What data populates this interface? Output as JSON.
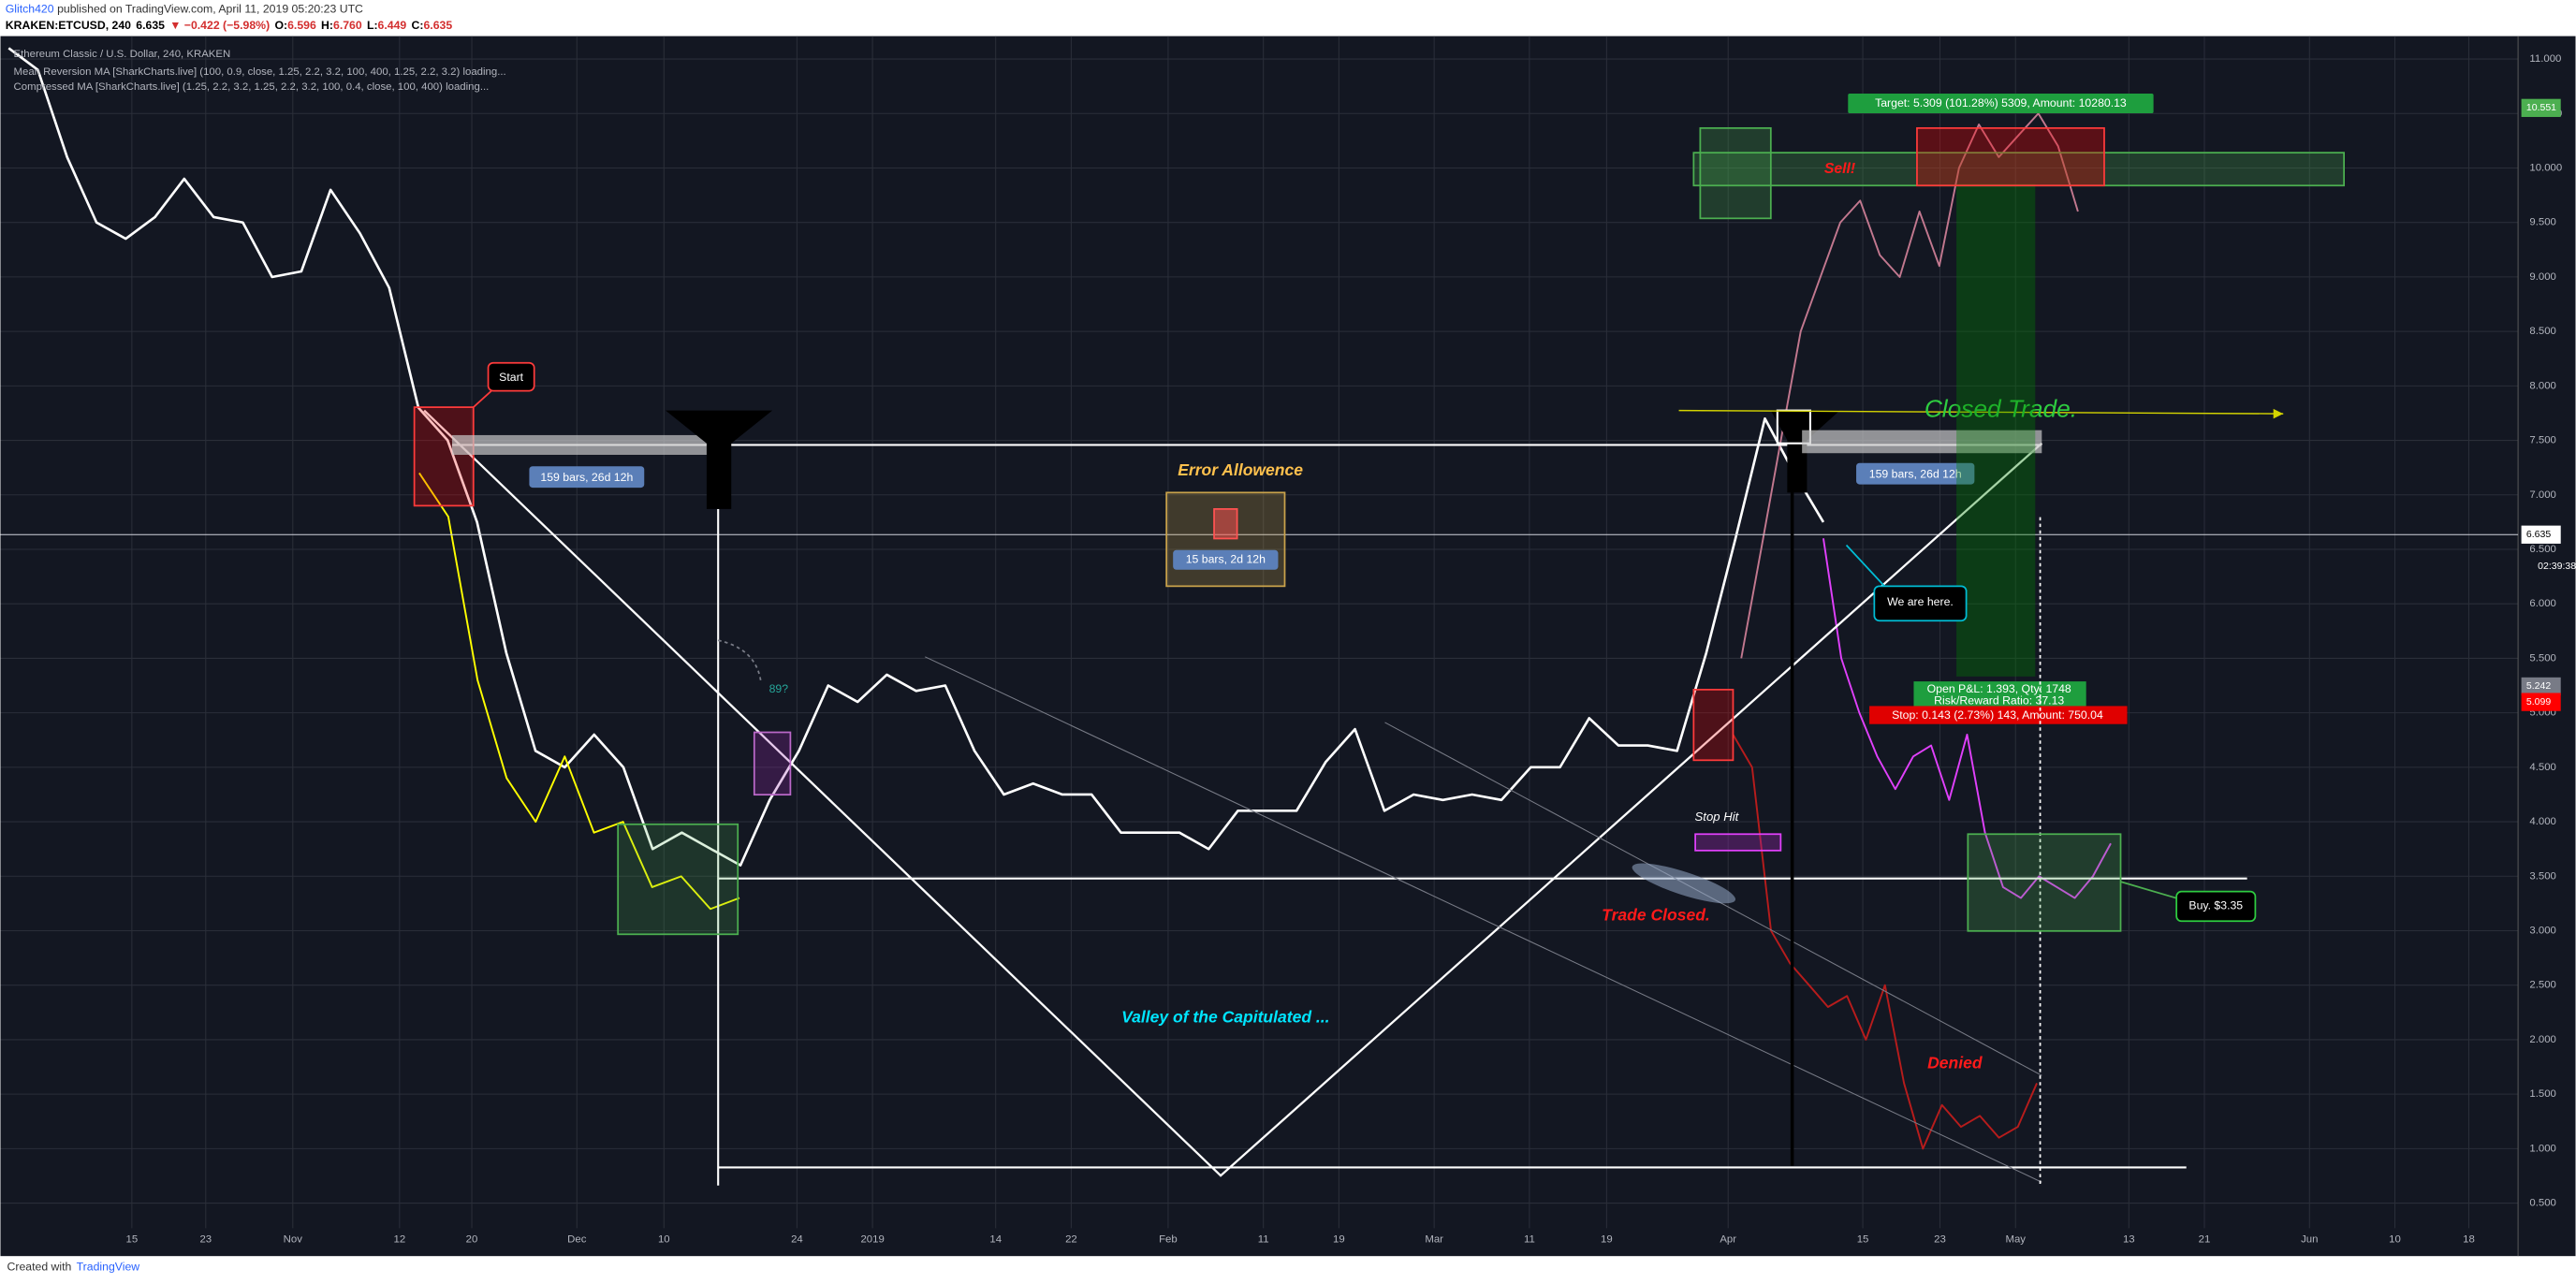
{
  "header": {
    "author": "Glitch420",
    "published": "published on TradingView.com, April 11, 2019 05:20:23 UTC",
    "symbol": "KRAKEN:ETCUSD, 240",
    "last": "6.635",
    "change": "▼ −0.422 (−5.98%)",
    "ohlc": [
      {
        "key": "O:",
        "value": "6.596"
      },
      {
        "key": "H:",
        "value": "6.760"
      },
      {
        "key": "L:",
        "value": "6.449"
      },
      {
        "key": "C:",
        "value": "6.635"
      }
    ]
  },
  "chart_data": {
    "type": "line",
    "title": "Ethereum Classic / U.S. Dollar, 240, KRAKEN",
    "indicators": [
      "Mean Reversion MA [SharkCharts.live] (100, 0.9, close, 1.25, 2.2, 3.2, 100, 400, 1.25, 2.2, 3.2) loading...",
      "Compressed MA [SharkCharts.live] (1.25, 2.2, 3.2, 1.25, 2.2, 3.2, 100, 0.4, close, 100, 400) loading..."
    ],
    "x_labels": [
      "15",
      "23",
      "Nov",
      "12",
      "20",
      "Dec",
      "10",
      "24",
      "2019",
      "14",
      "22",
      "Feb",
      "11",
      "19",
      "Mar",
      "11",
      "19",
      "Apr",
      "15",
      "23",
      "May",
      "13",
      "21",
      "Jun",
      "10",
      "18"
    ],
    "ylim": [
      0.27,
      11.21
    ],
    "yticks": [
      {
        "value": 0.5,
        "label": "0.500"
      },
      {
        "value": 1,
        "label": "1.000"
      },
      {
        "value": 1.5,
        "label": "1.500"
      },
      {
        "value": 2,
        "label": "2.000"
      },
      {
        "value": 2.5,
        "label": "2.500"
      },
      {
        "value": 3,
        "label": "3.000"
      },
      {
        "value": 3.5,
        "label": "3.500"
      },
      {
        "value": 4,
        "label": "4.000"
      },
      {
        "value": 4.5,
        "label": "4.500"
      },
      {
        "value": 5,
        "label": "5.000"
      },
      {
        "value": 5.5,
        "label": "5.500"
      },
      {
        "value": 6,
        "label": "6.000"
      },
      {
        "value": 6.5,
        "label": "6.500"
      },
      {
        "value": 7,
        "label": "7.000"
      },
      {
        "value": 7.5,
        "label": "7.500"
      },
      {
        "value": 8,
        "label": "8.000"
      },
      {
        "value": 8.5,
        "label": "8.500"
      },
      {
        "value": 9,
        "label": "9.000"
      },
      {
        "value": 9.5,
        "label": "9.500"
      },
      {
        "value": 10,
        "label": "10.000"
      },
      {
        "value": 10.5,
        "label": "10.500"
      },
      {
        "value": 11,
        "label": "11.000"
      }
    ],
    "grid": true,
    "series": [
      {
        "color": "#ffffff",
        "values": [
          11.1,
          10.9,
          10.1,
          9.5,
          9.35,
          9.55,
          9.9,
          9.55,
          9.5,
          9.0,
          9.05,
          9.8,
          9.4,
          8.9,
          7.8,
          7.5,
          6.75,
          5.55,
          4.65,
          4.5,
          4.8,
          4.5,
          3.75,
          3.9,
          3.75,
          3.6,
          4.2,
          4.65,
          5.25,
          5.1,
          5.35,
          5.2,
          5.25,
          4.65,
          4.25,
          4.35,
          4.25,
          4.25,
          3.9,
          3.9,
          3.9,
          3.75,
          4.1,
          4.1,
          4.1,
          4.55,
          4.85,
          4.1,
          4.25,
          4.2,
          4.25,
          4.2,
          4.5,
          4.5,
          4.95,
          4.7,
          4.7,
          4.65,
          5.55,
          6.6,
          7.7,
          7.2,
          6.75
        ]
      },
      {
        "color": "#ffff00",
        "values": [
          7.2,
          6.8,
          5.3,
          4.4,
          4.0,
          4.6,
          3.9,
          4.0,
          3.4,
          3.5,
          3.2,
          3.3
        ]
      },
      {
        "color": "#c2788f",
        "values": [
          5.5,
          6.5,
          7.5,
          8.5,
          9.0,
          9.5,
          9.7,
          9.2,
          9.0,
          9.6,
          9.1,
          10.0,
          10.4,
          10.1,
          10.3,
          10.5,
          10.2,
          9.6
        ]
      },
      {
        "color": "#e040fb",
        "values": [
          6.6,
          5.5,
          5.0,
          4.6,
          4.3,
          4.6,
          4.7,
          4.2,
          4.8,
          3.9,
          3.4,
          3.3,
          3.5,
          3.4,
          3.3,
          3.5,
          3.8
        ]
      },
      {
        "color": "#b71c1c",
        "values": [
          4.8,
          4.5,
          3.0,
          2.7,
          2.5,
          2.3,
          2.4,
          2.0,
          2.5,
          1.6,
          1.0,
          1.4,
          1.2,
          1.3,
          1.1,
          1.2,
          1.6
        ]
      }
    ],
    "price_labels": [
      {
        "value": 10.551,
        "color": "#4caf50"
      },
      {
        "value": 6.635,
        "color": "#ffffff"
      },
      {
        "value": 5.242,
        "color": "#787b86"
      },
      {
        "value": 5.099,
        "color": "#ff0000"
      }
    ],
    "countdown": "02:39:38",
    "annotations": {
      "start": "Start",
      "bars_left": "159 bars, 26d 12h",
      "bars_right": "159 bars, 26d 12h",
      "error": "Error Allowence",
      "error_bars": "15 bars, 2d 12h",
      "fib": "89?",
      "valley": "Valley of the Capitulated ...",
      "stop_hit": "Stop Hit",
      "trade_closed": "Trade Closed.",
      "denied": "Denied",
      "closed_trade": "Closed Trade.",
      "here": "We are here.",
      "target": "Target: 5.309 (101.28%) 5309, Amount: 10280.13",
      "pnl": "Open P&L: 1.393, Qty: 1748",
      "rr": "Risk/Reward Ratio: 37.13",
      "stop": "Stop: 0.143 (2.73%) 143, Amount: 750.04",
      "buy": "Buy. $3.35",
      "sell": "Sell!"
    }
  },
  "footer": {
    "created": "Created with",
    "brand": "TradingView"
  }
}
